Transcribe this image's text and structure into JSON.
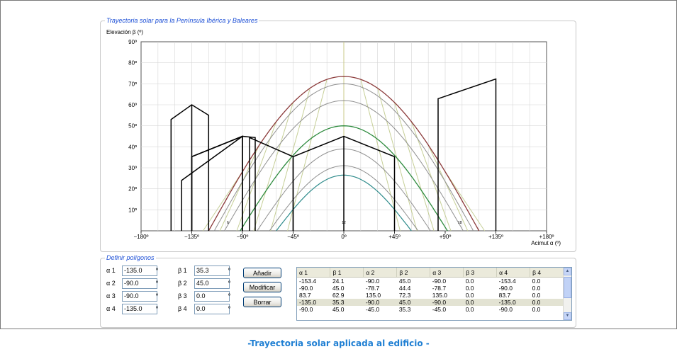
{
  "chart_section": {
    "title": "Trayectoria solar para la Península Ibérica y Baleares"
  },
  "polygons_section": {
    "title": "Definir polígonos"
  },
  "chart_data": {
    "type": "line",
    "ylabel": "Elevación β (º)",
    "xlabel": "Acimut α (º)",
    "xlim": [
      -180,
      180
    ],
    "ylim": [
      0,
      90
    ],
    "x_ticks": [
      {
        "v": -180,
        "label": "−180º"
      },
      {
        "v": -135,
        "label": "−135º"
      },
      {
        "v": -90,
        "label": "−90º"
      },
      {
        "v": -45,
        "label": "−45º"
      },
      {
        "v": 0,
        "label": "0º"
      },
      {
        "v": 45,
        "label": "+45º"
      },
      {
        "v": 90,
        "label": "+90º"
      },
      {
        "v": 135,
        "label": "+135º"
      },
      {
        "v": 180,
        "label": "+180º"
      }
    ],
    "y_ticks": [
      {
        "v": 10,
        "label": "10º"
      },
      {
        "v": 20,
        "label": "20º"
      },
      {
        "v": 30,
        "label": "30º"
      },
      {
        "v": 40,
        "label": "40º"
      },
      {
        "v": 50,
        "label": "50º"
      },
      {
        "v": 60,
        "label": "60º"
      },
      {
        "v": 70,
        "label": "70º"
      },
      {
        "v": 80,
        "label": "80º"
      },
      {
        "v": 90,
        "label": "90º"
      }
    ],
    "hour_markers": [
      {
        "x": -103,
        "label": "6"
      },
      {
        "x": 0,
        "label": "12"
      },
      {
        "x": 103,
        "label": "18"
      }
    ],
    "sun_paths": [
      {
        "name": "",
        "color": "#8b3a3a",
        "width": 1.3,
        "peak": 73.5,
        "half_span": 120
      },
      {
        "name": "",
        "color": "#8f8f8f",
        "width": 1.0,
        "peak": 70.0,
        "half_span": 115
      },
      {
        "name": "",
        "color": "#8f8f8f",
        "width": 1.0,
        "peak": 62.0,
        "half_span": 106
      },
      {
        "name": "",
        "color": "#2e8b3e",
        "width": 1.3,
        "peak": 50.0,
        "half_span": 92
      },
      {
        "name": "",
        "color": "#8f8f8f",
        "width": 1.0,
        "peak": 39.0,
        "half_span": 77
      },
      {
        "name": "",
        "color": "#8f8f8f",
        "width": 1.0,
        "peak": 31.0,
        "half_span": 66
      },
      {
        "name": "",
        "color": "#2e8b8b",
        "width": 1.2,
        "peak": 26.5,
        "half_span": 60
      }
    ],
    "hour_lines": [
      {
        "peak_x": -15,
        "bottom_x": -50
      },
      {
        "peak_x": -30,
        "bottom_x": -65
      },
      {
        "peak_x": -45,
        "bottom_x": -80
      },
      {
        "peak_x": -60,
        "bottom_x": -95
      },
      {
        "peak_x": -75,
        "bottom_x": -110
      },
      {
        "peak_x": -90,
        "bottom_x": -125
      },
      {
        "peak_x": 15,
        "bottom_x": 50
      },
      {
        "peak_x": 30,
        "bottom_x": 65
      },
      {
        "peak_x": 45,
        "bottom_x": 80
      },
      {
        "peak_x": 60,
        "bottom_x": 95
      },
      {
        "peak_x": 75,
        "bottom_x": 110
      },
      {
        "peak_x": 90,
        "bottom_x": 125
      }
    ],
    "obstacles": [
      [
        [
          -153.4,
          0
        ],
        [
          -153.4,
          53
        ],
        [
          -135,
          60
        ],
        [
          -120,
          55
        ],
        [
          -120,
          0
        ]
      ],
      [
        [
          -135,
          0
        ],
        [
          -135,
          60
        ]
      ],
      [
        [
          -135,
          0
        ],
        [
          -135,
          35.3
        ],
        [
          -90,
          45
        ],
        [
          -90,
          0
        ]
      ],
      [
        [
          -135,
          0
        ],
        [
          -135,
          35.3
        ],
        [
          -90,
          45
        ]
      ],
      [
        [
          -144,
          0
        ],
        [
          -144,
          24
        ],
        [
          -90,
          45
        ]
      ],
      [
        [
          -90,
          0
        ],
        [
          -90,
          45
        ],
        [
          -78.7,
          44.4
        ],
        [
          -78.7,
          0
        ]
      ],
      [
        [
          -83.7,
          0
        ],
        [
          -83.7,
          44.4
        ],
        [
          -45,
          35.3
        ],
        [
          -45,
          0
        ]
      ],
      [
        [
          -45,
          0
        ],
        [
          -45,
          35.3
        ],
        [
          0,
          45
        ],
        [
          45,
          35.3
        ],
        [
          45,
          0
        ]
      ],
      [
        [
          0,
          0
        ],
        [
          0,
          45
        ]
      ],
      [
        [
          83.7,
          0
        ],
        [
          83.7,
          62.9
        ],
        [
          135,
          72.3
        ],
        [
          135,
          0
        ]
      ]
    ]
  },
  "inputs": [
    {
      "alpha_label": "α 1",
      "alpha_value": "-135.0",
      "beta_label": "β 1",
      "beta_value": "35.3",
      "unit": "º"
    },
    {
      "alpha_label": "α 2",
      "alpha_value": "-90.0",
      "beta_label": "β 2",
      "beta_value": "45.0",
      "unit": "º"
    },
    {
      "alpha_label": "α 3",
      "alpha_value": "-90.0",
      "beta_label": "β 3",
      "beta_value": "0.0",
      "unit": "º"
    },
    {
      "alpha_label": "α 4",
      "alpha_value": "-135.0",
      "beta_label": "β 4",
      "beta_value": "0.0",
      "unit": "º"
    }
  ],
  "buttons": {
    "add": "Añadir",
    "modify": "Modificar",
    "delete": "Borrar"
  },
  "table": {
    "headers": [
      "α 1",
      "β 1",
      "α 2",
      "β 2",
      "α 3",
      "β 3",
      "α 4",
      "β 4"
    ],
    "rows": [
      [
        "-153.4",
        "24.1",
        "-90.0",
        "45.0",
        "-90.0",
        "0.0",
        "-153.4",
        "0.0"
      ],
      [
        "-90.0",
        "45.0",
        "-78.7",
        "44.4",
        "-78.7",
        "0.0",
        "-90.0",
        "0.0"
      ],
      [
        "83.7",
        "62.9",
        "135.0",
        "72.3",
        "135.0",
        "0.0",
        "83.7",
        "0.0"
      ],
      [
        "-135.0",
        "35.3",
        "-90.0",
        "45.0",
        "-90.0",
        "0.0",
        "-135.0",
        "0.0"
      ],
      [
        "-90.0",
        "45.0",
        "-45.0",
        "35.3",
        "-45.0",
        "0.0",
        "-90.0",
        "0.0"
      ]
    ],
    "selected_row": 3
  },
  "caption": "-Trayectoria solar aplicada al edificio -"
}
